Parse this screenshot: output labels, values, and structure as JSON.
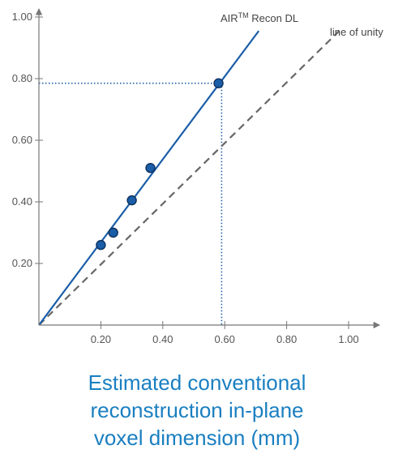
{
  "chart_data": {
    "type": "scatter",
    "xlabel_lines": [
      "Estimated conventional",
      "reconstruction in-plane",
      "voxel dimension (mm)"
    ],
    "ylabel": "",
    "xlim": [
      0,
      1.1
    ],
    "ylim": [
      0,
      1.0
    ],
    "x_ticks": [
      0.2,
      0.4,
      0.6,
      0.8,
      1.0
    ],
    "x_tick_labels": [
      "0.20",
      "0.40",
      "0.60",
      "0.80",
      "1.00"
    ],
    "y_ticks": [
      0.2,
      0.4,
      0.6,
      0.8,
      1.0
    ],
    "y_tick_labels": [
      "0.20",
      "0.40",
      "0.60",
      "0.80",
      "1.00"
    ],
    "grid": false,
    "series": [
      {
        "name": "AIR Recon DL",
        "superscript": "TM",
        "label_suffix": " Recon DL",
        "label_prefix": "AIR",
        "fit_line": {
          "from": [
            0,
            0
          ],
          "to": [
            0.71,
            0.955
          ]
        },
        "points": [
          {
            "x": 0.2,
            "y": 0.26
          },
          {
            "x": 0.24,
            "y": 0.3
          },
          {
            "x": 0.3,
            "y": 0.405
          },
          {
            "x": 0.36,
            "y": 0.51
          },
          {
            "x": 0.58,
            "y": 0.785
          }
        ]
      },
      {
        "name": "line of unity",
        "line": {
          "from": [
            0,
            0
          ],
          "to": [
            0.97,
            0.955
          ]
        }
      }
    ],
    "reference_lines": {
      "x": 0.59,
      "y": 0.785
    },
    "colors": {
      "fit_line": "#1a5ea8",
      "marker_fill": "#1a5ea8",
      "marker_stroke": "#0d2f5c",
      "unity_line": "#666666",
      "reference": "#1a5ea8",
      "axis": "#777777",
      "xlabel": "#1a7fc1"
    }
  }
}
